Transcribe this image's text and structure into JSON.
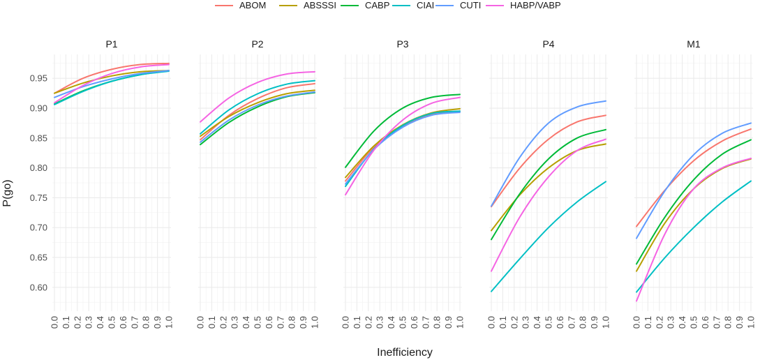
{
  "chart_data": {
    "type": "line",
    "xlabel": "Inefficiency",
    "ylabel": "P(go)",
    "xlim": [
      0,
      1
    ],
    "ylim": [
      0.56,
      0.99
    ],
    "x_ticks": [
      "0.0",
      "0.1",
      "0.2",
      "0.3",
      "0.4",
      "0.5",
      "0.6",
      "0.7",
      "0.8",
      "0.9",
      "1.0"
    ],
    "y_ticks": [
      "0.60",
      "0.65",
      "0.70",
      "0.75",
      "0.80",
      "0.85",
      "0.90",
      "0.95"
    ],
    "legend": [
      {
        "name": "ABOM",
        "color": "#F8766D"
      },
      {
        "name": "ABSSSI",
        "color": "#B79F00"
      },
      {
        "name": "CABP",
        "color": "#00BA38"
      },
      {
        "name": "CIAI",
        "color": "#00BFC4"
      },
      {
        "name": "CUTI",
        "color": "#619CFF"
      },
      {
        "name": "HABP/VABP",
        "color": "#F564E3"
      }
    ],
    "legend_position": "top",
    "x": [
      0.0,
      0.25,
      0.5,
      0.75,
      1.0
    ],
    "panels": [
      {
        "title": "P1",
        "series": [
          {
            "name": "ABOM",
            "values": [
              0.925,
              0.95,
              0.965,
              0.973,
              0.975
            ]
          },
          {
            "name": "ABSSSI",
            "values": [
              0.925,
              0.942,
              0.954,
              0.961,
              0.963
            ]
          },
          {
            "name": "CABP",
            "values": [
              0.907,
              0.929,
              0.945,
              0.956,
              0.963
            ]
          },
          {
            "name": "CIAI",
            "values": [
              0.906,
              0.928,
              0.945,
              0.956,
              0.962
            ]
          },
          {
            "name": "CUTI",
            "values": [
              0.918,
              0.936,
              0.949,
              0.958,
              0.963
            ]
          },
          {
            "name": "HABP/VABP",
            "values": [
              0.909,
              0.938,
              0.958,
              0.969,
              0.973
            ]
          }
        ]
      },
      {
        "title": "P2",
        "series": [
          {
            "name": "ABOM",
            "values": [
              0.847,
              0.888,
              0.916,
              0.934,
              0.941
            ]
          },
          {
            "name": "ABSSSI",
            "values": [
              0.853,
              0.886,
              0.909,
              0.924,
              0.93
            ]
          },
          {
            "name": "CABP",
            "values": [
              0.839,
              0.876,
              0.902,
              0.919,
              0.926
            ]
          },
          {
            "name": "CIAI",
            "values": [
              0.857,
              0.897,
              0.924,
              0.94,
              0.946
            ]
          },
          {
            "name": "CUTI",
            "values": [
              0.843,
              0.88,
              0.905,
              0.92,
              0.927
            ]
          },
          {
            "name": "HABP/VABP",
            "values": [
              0.877,
              0.917,
              0.943,
              0.957,
              0.961
            ]
          }
        ]
      },
      {
        "title": "P3",
        "series": [
          {
            "name": "ABOM",
            "values": [
              0.778,
              0.835,
              0.87,
              0.889,
              0.895
            ]
          },
          {
            "name": "ABSSSI",
            "values": [
              0.784,
              0.837,
              0.872,
              0.892,
              0.899
            ]
          },
          {
            "name": "CABP",
            "values": [
              0.801,
              0.862,
              0.9,
              0.918,
              0.923
            ]
          },
          {
            "name": "CIAI",
            "values": [
              0.769,
              0.832,
              0.871,
              0.891,
              0.895
            ]
          },
          {
            "name": "CUTI",
            "values": [
              0.773,
              0.831,
              0.868,
              0.888,
              0.893
            ]
          },
          {
            "name": "HABP/VABP",
            "values": [
              0.755,
              0.83,
              0.88,
              0.908,
              0.918
            ]
          }
        ]
      },
      {
        "title": "P4",
        "series": [
          {
            "name": "ABOM",
            "values": [
              0.735,
              0.8,
              0.848,
              0.877,
              0.888
            ]
          },
          {
            "name": "ABSSSI",
            "values": [
              0.695,
              0.755,
              0.8,
              0.829,
              0.84
            ]
          },
          {
            "name": "CABP",
            "values": [
              0.68,
              0.757,
              0.815,
              0.85,
              0.864
            ]
          },
          {
            "name": "CIAI",
            "values": [
              0.593,
              0.648,
              0.7,
              0.743,
              0.777
            ]
          },
          {
            "name": "CUTI",
            "values": [
              0.736,
              0.818,
              0.875,
              0.902,
              0.912
            ]
          },
          {
            "name": "HABP/VABP",
            "values": [
              0.627,
              0.718,
              0.785,
              0.829,
              0.848
            ]
          }
        ]
      },
      {
        "title": "M1",
        "series": [
          {
            "name": "ABOM",
            "values": [
              0.702,
              0.763,
              0.812,
              0.845,
              0.865
            ]
          },
          {
            "name": "ABSSSI",
            "values": [
              0.627,
              0.708,
              0.765,
              0.799,
              0.815
            ]
          },
          {
            "name": "CABP",
            "values": [
              0.639,
              0.718,
              0.78,
              0.823,
              0.847
            ]
          },
          {
            "name": "CIAI",
            "values": [
              0.592,
              0.65,
              0.7,
              0.743,
              0.778
            ]
          },
          {
            "name": "CUTI",
            "values": [
              0.682,
              0.762,
              0.822,
              0.858,
              0.875
            ]
          },
          {
            "name": "HABP/VABP",
            "values": [
              0.577,
              0.69,
              0.765,
              0.8,
              0.816
            ]
          }
        ]
      }
    ]
  }
}
